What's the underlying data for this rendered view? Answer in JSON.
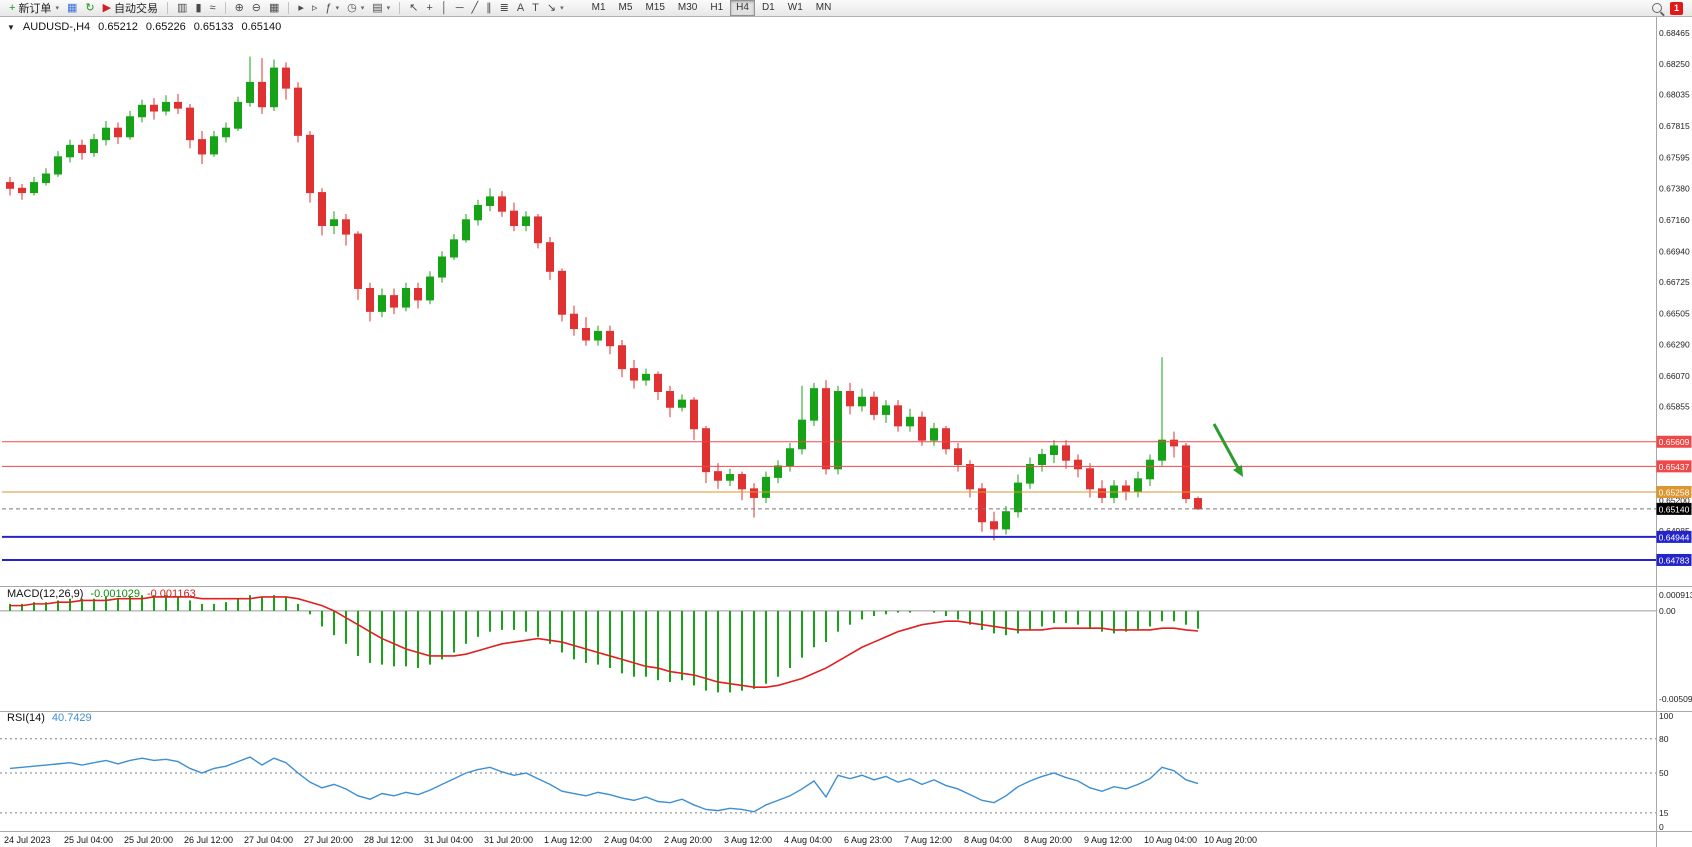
{
  "toolbar": {
    "groups": [
      {
        "name": "trade",
        "items": [
          {
            "name": "new-order-button",
            "glyph": "+",
            "glyph_color": "#189918",
            "label": "新订单",
            "dropdown": true
          },
          {
            "name": "charts-window-button",
            "glyph": "▦",
            "glyph_color": "#3a6fd8"
          },
          {
            "name": "refresh-button",
            "glyph": "↻",
            "glyph_color": "#189918"
          },
          {
            "name": "auto-trading-button",
            "glyph": "▶",
            "glyph_color": "#cc2222",
            "label": "自动交易"
          }
        ]
      },
      {
        "name": "chart-type",
        "items": [
          {
            "name": "bar-chart-button",
            "glyph": "▥"
          },
          {
            "name": "candlestick-chart-button",
            "glyph": "▮"
          },
          {
            "name": "line-chart-button",
            "glyph": "≈"
          }
        ]
      },
      {
        "name": "zoom",
        "items": [
          {
            "name": "zoom-in-button",
            "glyph": "⊕"
          },
          {
            "name": "zoom-out-button",
            "glyph": "⊖"
          },
          {
            "name": "tile-windows-button",
            "glyph": "▦"
          }
        ]
      },
      {
        "name": "chart-controls",
        "items": [
          {
            "name": "auto-scroll-button",
            "glyph": "▸"
          },
          {
            "name": "chart-shift-button",
            "glyph": "▹"
          },
          {
            "name": "indicators-button",
            "glyph": "ƒ",
            "dropdown": true
          },
          {
            "name": "periods-button",
            "glyph": "◷",
            "dropdown": true
          },
          {
            "name": "templates-button",
            "glyph": "▤",
            "dropdown": true
          }
        ]
      },
      {
        "name": "objects",
        "items": [
          {
            "name": "cursor-button",
            "glyph": "↖"
          },
          {
            "name": "crosshair-button",
            "glyph": "+"
          },
          {
            "name": "vertical-line-button",
            "glyph": "│"
          },
          {
            "name": "horizontal-line-button",
            "glyph": "─"
          },
          {
            "name": "trendline-button",
            "glyph": "╱"
          },
          {
            "name": "equidistant-channel-button",
            "glyph": "∥"
          },
          {
            "name": "fibonacci-button",
            "glyph": "≣"
          },
          {
            "name": "text-button",
            "glyph": "A"
          },
          {
            "name": "text-label-button",
            "glyph": "T"
          },
          {
            "name": "arrows-button",
            "glyph": "↘",
            "dropdown": true
          }
        ]
      }
    ],
    "timeframes": {
      "items": [
        "M1",
        "M5",
        "M15",
        "M30",
        "H1",
        "H4",
        "D1",
        "W1",
        "MN"
      ],
      "active": "H4"
    },
    "notification_count": "1"
  },
  "header": {
    "collapse_glyph": "▼",
    "symbol": "AUDUSD-,H4",
    "open": "0.65212",
    "high": "0.65226",
    "low": "0.65133",
    "close": "0.65140"
  },
  "macd_label": {
    "title": "MACD(12,26,9)",
    "main_value": "-0.001029",
    "signal_value": "-0.001163"
  },
  "rsi_label": {
    "title": "RSI(14)",
    "value": "40.7429"
  },
  "notification": {
    "count": "1"
  },
  "colors": {
    "up": "#17a317",
    "down": "#e03232",
    "macd_hist": "#17a317",
    "macd_signal": "#e02020",
    "rsi": "#3c8fd4",
    "level_red": "#f04848",
    "level_orange": "#dd9632",
    "level_blue": "#2424cc",
    "price_badge": "#000000",
    "arrow": "#2d9b2d"
  },
  "chart_data": {
    "type": "candlestick",
    "title": "AUDUSD-,H4",
    "timeframe": "H4",
    "ylim": [
      0.64608,
      0.68577
    ],
    "price_axis_labels": [
      "0.68465",
      "0.68250",
      "0.68035",
      "0.67815",
      "0.67595",
      "0.67380",
      "0.67160",
      "0.66940",
      "0.66725",
      "0.66505",
      "0.66290",
      "0.66070",
      "0.65855",
      "0.65200",
      "0.64985"
    ],
    "candles": [
      [
        0.6742,
        0.6746,
        0.6733,
        0.6738
      ],
      [
        0.6738,
        0.6741,
        0.673,
        0.6735
      ],
      [
        0.6735,
        0.6746,
        0.6733,
        0.6742
      ],
      [
        0.6742,
        0.6752,
        0.674,
        0.6748
      ],
      [
        0.6748,
        0.6764,
        0.6746,
        0.676
      ],
      [
        0.676,
        0.6772,
        0.6756,
        0.6768
      ],
      [
        0.6768,
        0.6772,
        0.6758,
        0.6763
      ],
      [
        0.6763,
        0.6776,
        0.676,
        0.6772
      ],
      [
        0.6772,
        0.6785,
        0.6768,
        0.678
      ],
      [
        0.678,
        0.6784,
        0.6769,
        0.6774
      ],
      [
        0.6774,
        0.6792,
        0.6772,
        0.6788
      ],
      [
        0.6788,
        0.68,
        0.6784,
        0.6796
      ],
      [
        0.6796,
        0.6801,
        0.6786,
        0.6792
      ],
      [
        0.6792,
        0.6803,
        0.6789,
        0.6798
      ],
      [
        0.6798,
        0.6804,
        0.679,
        0.6794
      ],
      [
        0.6794,
        0.6797,
        0.6766,
        0.6772
      ],
      [
        0.6772,
        0.6778,
        0.6755,
        0.6762
      ],
      [
        0.6762,
        0.6778,
        0.676,
        0.6774
      ],
      [
        0.6774,
        0.6784,
        0.677,
        0.678
      ],
      [
        0.678,
        0.6802,
        0.6778,
        0.6798
      ],
      [
        0.6798,
        0.683,
        0.6795,
        0.6812
      ],
      [
        0.6812,
        0.6829,
        0.679,
        0.6795
      ],
      [
        0.6795,
        0.6828,
        0.6792,
        0.6822
      ],
      [
        0.6822,
        0.6826,
        0.68,
        0.6808
      ],
      [
        0.6808,
        0.6812,
        0.677,
        0.6775
      ],
      [
        0.6775,
        0.6778,
        0.6728,
        0.6735
      ],
      [
        0.6735,
        0.6738,
        0.6705,
        0.6712
      ],
      [
        0.6712,
        0.6722,
        0.6706,
        0.6716
      ],
      [
        0.6716,
        0.672,
        0.6698,
        0.6706
      ],
      [
        0.6706,
        0.6708,
        0.666,
        0.6668
      ],
      [
        0.6668,
        0.6672,
        0.6645,
        0.6652
      ],
      [
        0.6652,
        0.6668,
        0.6648,
        0.6663
      ],
      [
        0.6663,
        0.6668,
        0.665,
        0.6655
      ],
      [
        0.6655,
        0.6672,
        0.6652,
        0.6668
      ],
      [
        0.6668,
        0.6672,
        0.6654,
        0.666
      ],
      [
        0.666,
        0.668,
        0.6657,
        0.6676
      ],
      [
        0.6676,
        0.6694,
        0.6672,
        0.669
      ],
      [
        0.669,
        0.6706,
        0.6688,
        0.6702
      ],
      [
        0.6702,
        0.672,
        0.67,
        0.6716
      ],
      [
        0.6716,
        0.673,
        0.6712,
        0.6726
      ],
      [
        0.6726,
        0.6738,
        0.6722,
        0.6732
      ],
      [
        0.6732,
        0.6736,
        0.6718,
        0.6722
      ],
      [
        0.6722,
        0.6728,
        0.6708,
        0.6712
      ],
      [
        0.6712,
        0.6722,
        0.6708,
        0.6718
      ],
      [
        0.6718,
        0.672,
        0.6696,
        0.67
      ],
      [
        0.67,
        0.6704,
        0.6674,
        0.668
      ],
      [
        0.668,
        0.6682,
        0.6645,
        0.665
      ],
      [
        0.665,
        0.6656,
        0.6635,
        0.664
      ],
      [
        0.664,
        0.6648,
        0.6628,
        0.6632
      ],
      [
        0.6632,
        0.6642,
        0.6628,
        0.6638
      ],
      [
        0.6638,
        0.6642,
        0.6622,
        0.6628
      ],
      [
        0.6628,
        0.6632,
        0.6606,
        0.6612
      ],
      [
        0.6612,
        0.6618,
        0.6598,
        0.6604
      ],
      [
        0.6604,
        0.6612,
        0.66,
        0.6608
      ],
      [
        0.6608,
        0.661,
        0.659,
        0.6596
      ],
      [
        0.6596,
        0.66,
        0.6578,
        0.6585
      ],
      [
        0.6585,
        0.6594,
        0.6582,
        0.659
      ],
      [
        0.659,
        0.6592,
        0.6562,
        0.657
      ],
      [
        0.657,
        0.6572,
        0.6532,
        0.654
      ],
      [
        0.654,
        0.6546,
        0.6528,
        0.6534
      ],
      [
        0.6534,
        0.6542,
        0.653,
        0.6538
      ],
      [
        0.6538,
        0.654,
        0.652,
        0.6528
      ],
      [
        0.6528,
        0.6532,
        0.6508,
        0.6522
      ],
      [
        0.6522,
        0.654,
        0.6518,
        0.6536
      ],
      [
        0.6536,
        0.6548,
        0.6532,
        0.6544
      ],
      [
        0.6544,
        0.656,
        0.654,
        0.6556
      ],
      [
        0.6556,
        0.66,
        0.6552,
        0.6576
      ],
      [
        0.6576,
        0.6602,
        0.6572,
        0.6598
      ],
      [
        0.6598,
        0.6604,
        0.6538,
        0.6542
      ],
      [
        0.6542,
        0.66,
        0.6538,
        0.6596
      ],
      [
        0.6596,
        0.6602,
        0.658,
        0.6586
      ],
      [
        0.6586,
        0.6598,
        0.6582,
        0.6592
      ],
      [
        0.6592,
        0.6596,
        0.6576,
        0.658
      ],
      [
        0.658,
        0.659,
        0.6574,
        0.6586
      ],
      [
        0.6586,
        0.659,
        0.6568,
        0.6572
      ],
      [
        0.6572,
        0.6584,
        0.6568,
        0.6578
      ],
      [
        0.6578,
        0.6582,
        0.6558,
        0.6562
      ],
      [
        0.6562,
        0.6574,
        0.6558,
        0.657
      ],
      [
        0.657,
        0.6572,
        0.6552,
        0.6556
      ],
      [
        0.6556,
        0.656,
        0.654,
        0.6545
      ],
      [
        0.6545,
        0.6548,
        0.6522,
        0.6528
      ],
      [
        0.6528,
        0.6532,
        0.6498,
        0.6505
      ],
      [
        0.6505,
        0.6512,
        0.6492,
        0.65
      ],
      [
        0.65,
        0.6516,
        0.6496,
        0.6512
      ],
      [
        0.6512,
        0.6538,
        0.6508,
        0.6532
      ],
      [
        0.6532,
        0.655,
        0.6528,
        0.6545
      ],
      [
        0.6545,
        0.6556,
        0.654,
        0.6552
      ],
      [
        0.6552,
        0.6562,
        0.6546,
        0.6558
      ],
      [
        0.6558,
        0.6562,
        0.6542,
        0.6548
      ],
      [
        0.6548,
        0.6552,
        0.6536,
        0.6542
      ],
      [
        0.6542,
        0.6546,
        0.6522,
        0.6528
      ],
      [
        0.6528,
        0.6534,
        0.6518,
        0.6522
      ],
      [
        0.6522,
        0.6534,
        0.6518,
        0.653
      ],
      [
        0.653,
        0.6534,
        0.652,
        0.6526
      ],
      [
        0.6526,
        0.654,
        0.6522,
        0.6535
      ],
      [
        0.6535,
        0.6552,
        0.653,
        0.6548
      ],
      [
        0.6548,
        0.662,
        0.6544,
        0.6562
      ],
      [
        0.6562,
        0.6568,
        0.655,
        0.6558
      ],
      [
        0.6558,
        0.656,
        0.6518,
        0.65212
      ],
      [
        0.65212,
        0.65226,
        0.65133,
        0.6514
      ]
    ],
    "levels": [
      {
        "label": "0.65609",
        "value": 0.65609,
        "color_key": "level_red"
      },
      {
        "label": "0.65437",
        "value": 0.65437,
        "color_key": "level_red"
      },
      {
        "label": "0.65258",
        "value": 0.65258,
        "color_key": "level_orange"
      },
      {
        "label": "0.64944",
        "value": 0.64944,
        "color_key": "level_blue"
      },
      {
        "label": "0.64783",
        "value": 0.64783,
        "color_key": "level_blue"
      }
    ],
    "current_price": {
      "label": "0.65140",
      "value": 0.6514
    },
    "time_labels": [
      "24 Jul 2023",
      "25 Jul 04:00",
      "25 Jul 20:00",
      "26 Jul 12:00",
      "27 Jul 04:00",
      "27 Jul 20:00",
      "28 Jul 12:00",
      "31 Jul 04:00",
      "31 Jul 20:00",
      "1 Aug 12:00",
      "2 Aug 04:00",
      "2 Aug 20:00",
      "3 Aug 12:00",
      "4 Aug 04:00",
      "6 Aug 23:00",
      "7 Aug 12:00",
      "8 Aug 04:00",
      "8 Aug 20:00",
      "9 Aug 12:00",
      "10 Aug 04:00",
      "10 Aug 20:00"
    ],
    "macd": {
      "ylim": [
        -0.0056,
        0.0012
      ],
      "axis_labels": [
        {
          "text": "0.000913",
          "value": 0.000913
        },
        {
          "text": "0.00",
          "value": 0
        },
        {
          "text": "-0.005093",
          "value": -0.005093
        }
      ],
      "histogram": [
        0.0004,
        0.0004,
        0.0005,
        0.0005,
        0.0006,
        0.0007,
        0.0007,
        0.0007,
        0.0008,
        0.0007,
        0.0008,
        0.0009,
        0.0009,
        0.0009,
        0.0008,
        0.0006,
        0.0004,
        0.0004,
        0.0005,
        0.0007,
        0.0009,
        0.0008,
        0.0009,
        0.0008,
        0.0004,
        -0.0002,
        -0.0009,
        -0.0014,
        -0.0019,
        -0.0026,
        -0.003,
        -0.0031,
        -0.0032,
        -0.0032,
        -0.0033,
        -0.0031,
        -0.0028,
        -0.0024,
        -0.0019,
        -0.0015,
        -0.0012,
        -0.0011,
        -0.0011,
        -0.0012,
        -0.0015,
        -0.0019,
        -0.0024,
        -0.0028,
        -0.003,
        -0.0031,
        -0.0033,
        -0.0036,
        -0.0038,
        -0.0038,
        -0.004,
        -0.0041,
        -0.004,
        -0.0043,
        -0.0046,
        -0.0047,
        -0.0047,
        -0.0046,
        -0.0045,
        -0.0042,
        -0.0038,
        -0.0033,
        -0.0027,
        -0.0021,
        -0.0018,
        -0.0012,
        -0.0008,
        -0.0005,
        -0.0003,
        -0.0002,
        -0.0001,
        -0.0001,
        0.0,
        -0.0001,
        -0.0003,
        -0.0005,
        -0.0008,
        -0.0011,
        -0.0013,
        -0.0014,
        -0.0013,
        -0.0011,
        -0.0009,
        -0.0007,
        -0.0007,
        -0.0008,
        -0.001,
        -0.0012,
        -0.0013,
        -0.0012,
        -0.0011,
        -0.0009,
        -0.0006,
        -0.0006,
        -0.0008,
        -0.00103
      ],
      "signal": [
        0.0003,
        0.0003,
        0.0004,
        0.0004,
        0.0005,
        0.0005,
        0.0006,
        0.0006,
        0.0006,
        0.0007,
        0.0007,
        0.0007,
        0.0008,
        0.0008,
        0.0008,
        0.0008,
        0.0007,
        0.0007,
        0.0007,
        0.0007,
        0.0007,
        0.0008,
        0.0008,
        0.0008,
        0.0007,
        0.0005,
        0.0003,
        0.0,
        -0.0004,
        -0.0008,
        -0.0012,
        -0.0016,
        -0.0019,
        -0.0022,
        -0.0024,
        -0.0026,
        -0.0026,
        -0.0026,
        -0.0025,
        -0.0023,
        -0.0021,
        -0.0019,
        -0.0018,
        -0.0017,
        -0.0016,
        -0.0017,
        -0.0018,
        -0.002,
        -0.0022,
        -0.0024,
        -0.0026,
        -0.0028,
        -0.003,
        -0.0032,
        -0.0033,
        -0.0035,
        -0.0036,
        -0.0037,
        -0.0039,
        -0.0041,
        -0.0042,
        -0.0043,
        -0.0044,
        -0.0044,
        -0.0043,
        -0.0041,
        -0.0039,
        -0.0036,
        -0.0033,
        -0.0029,
        -0.0025,
        -0.0021,
        -0.0018,
        -0.0015,
        -0.0012,
        -0.001,
        -0.0008,
        -0.0007,
        -0.0006,
        -0.0006,
        -0.0007,
        -0.0008,
        -0.0009,
        -0.001,
        -0.0011,
        -0.0011,
        -0.0011,
        -0.001,
        -0.001,
        -0.001,
        -0.001,
        -0.001,
        -0.0011,
        -0.0011,
        -0.0011,
        -0.0011,
        -0.001,
        -0.001,
        -0.0011,
        -0.001163
      ]
    },
    "rsi": {
      "ylim": [
        0,
        100
      ],
      "axis_labels": [
        {
          "text": "100",
          "value": 100
        },
        {
          "text": "80",
          "value": 80
        },
        {
          "text": "50",
          "value": 50
        },
        {
          "text": "15",
          "value": 15
        },
        {
          "text": "0",
          "value": 0
        }
      ],
      "level_lines": [
        80,
        50,
        15
      ],
      "values": [
        54,
        55,
        56,
        57,
        58,
        59,
        57,
        59,
        61,
        58,
        61,
        63,
        61,
        62,
        60,
        54,
        50,
        54,
        56,
        60,
        64,
        57,
        63,
        59,
        50,
        42,
        37,
        40,
        36,
        30,
        27,
        32,
        30,
        33,
        31,
        35,
        40,
        45,
        50,
        53,
        55,
        51,
        48,
        50,
        45,
        40,
        34,
        32,
        30,
        33,
        31,
        28,
        26,
        29,
        25,
        24,
        27,
        22,
        18,
        17,
        19,
        18,
        16,
        22,
        26,
        30,
        36,
        43,
        29,
        48,
        45,
        48,
        44,
        47,
        42,
        45,
        40,
        44,
        39,
        36,
        31,
        26,
        24,
        30,
        38,
        43,
        47,
        50,
        46,
        43,
        37,
        34,
        38,
        36,
        40,
        45,
        55,
        52,
        44,
        40.7
      ]
    }
  }
}
